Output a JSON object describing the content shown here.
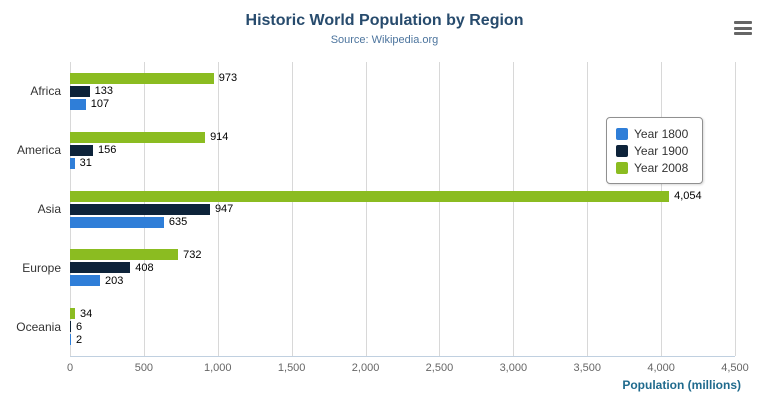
{
  "chart": {
    "title": "Historic World Population by Region",
    "subtitle": "Source: Wikipedia.org",
    "xlabel": "Population (millions)",
    "menu_icon": "hamburger-export-menu"
  },
  "chart_data": {
    "type": "bar",
    "orientation": "horizontal",
    "title": "Historic World Population by Region",
    "subtitle": "Source: Wikipedia.org",
    "xlabel": "Population (millions)",
    "categories": [
      "Africa",
      "America",
      "Asia",
      "Europe",
      "Oceania"
    ],
    "series": [
      {
        "name": "Year 1800",
        "color": "#2f7ed8",
        "values": [
          107,
          31,
          635,
          203,
          2
        ]
      },
      {
        "name": "Year 1900",
        "color": "#0d233a",
        "values": [
          133,
          156,
          947,
          408,
          6
        ]
      },
      {
        "name": "Year 2008",
        "color": "#8bbc21",
        "values": [
          973,
          914,
          4054,
          732,
          34
        ]
      }
    ],
    "xlim": [
      0,
      4500
    ],
    "xticks": [
      0,
      500,
      1000,
      1500,
      2000,
      2500,
      3000,
      3500,
      4000,
      4500
    ],
    "grid": true,
    "legend_position": "right",
    "data_labels": true
  }
}
